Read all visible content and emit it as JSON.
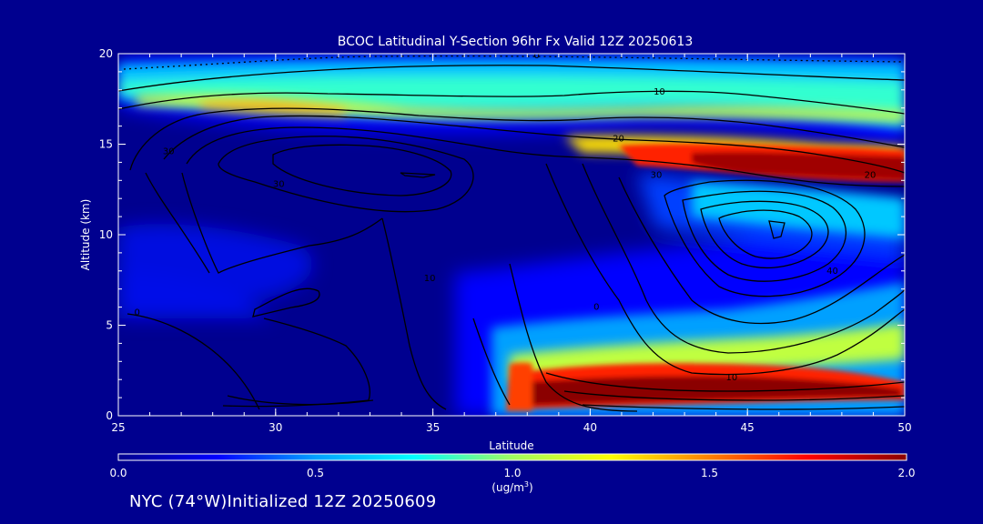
{
  "chart_data": {
    "type": "heatmap",
    "title": "BCOC Latitudinal Y-Section 96hr  Fx Valid 12Z 20250613",
    "xlabel": "Latitude",
    "ylabel": "Altitude (km)",
    "xlim": [
      25,
      50
    ],
    "ylim": [
      0,
      20
    ],
    "x_ticks": [
      "25",
      "30",
      "35",
      "40",
      "45",
      "50"
    ],
    "y_ticks": [
      "0",
      "5",
      "10",
      "15",
      "20"
    ],
    "colorbar": {
      "min": 0.0,
      "max": 2.0,
      "ticks": [
        "0.0",
        "0.5",
        "1.0",
        "1.5",
        "2.0"
      ],
      "units": "(ug/m",
      "units_sup": "3",
      "units_close": ")",
      "stops": [
        "#00008f",
        "#0000ff",
        "#00a0ff",
        "#00ffff",
        "#a0ff60",
        "#ffff00",
        "#ff8000",
        "#ff0000",
        "#8b0000"
      ]
    },
    "contour_labels": [
      {
        "text": "0",
        "lat": 38.3,
        "alt": 19.9
      },
      {
        "text": "10",
        "lat": 42.2,
        "alt": 17.9
      },
      {
        "text": "20",
        "lat": 40.9,
        "alt": 15.3
      },
      {
        "text": "30",
        "lat": 30.1,
        "alt": 12.8
      },
      {
        "text": "30",
        "lat": 26.6,
        "alt": 14.6
      },
      {
        "text": "30",
        "lat": 42.1,
        "alt": 13.3
      },
      {
        "text": "20",
        "lat": 48.9,
        "alt": 13.3
      },
      {
        "text": "40",
        "lat": 47.7,
        "alt": 8.0
      },
      {
        "text": "10",
        "lat": 34.9,
        "alt": 7.6
      },
      {
        "text": "0",
        "lat": 25.6,
        "alt": 5.7
      },
      {
        "text": "0",
        "lat": 40.2,
        "alt": 6.0
      },
      {
        "text": "10",
        "lat": 44.5,
        "alt": 2.1
      }
    ]
  },
  "footer_text": "NYC (74°W)Initialized 12Z 20250609"
}
